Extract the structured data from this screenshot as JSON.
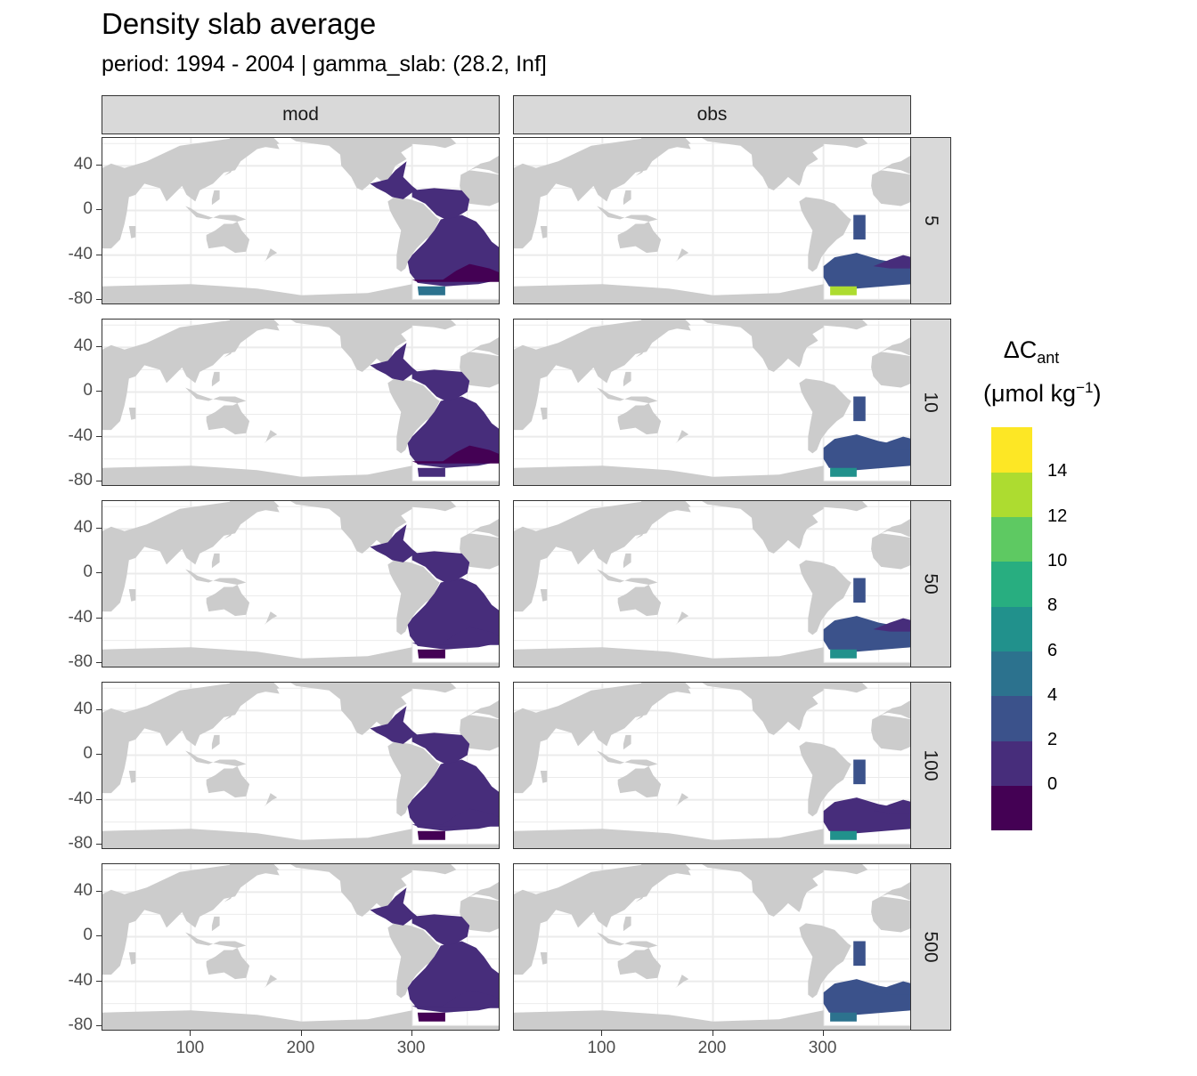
{
  "chart_data": {
    "type": "heatmap",
    "title": "Density slab average",
    "subtitle": "period: 1994 - 2004 | gamma_slab: (28.2, Inf]",
    "facet_columns": [
      "mod",
      "obs"
    ],
    "facet_rows": [
      "5",
      "10",
      "50",
      "100",
      "500"
    ],
    "x_ticks": [
      "100",
      "200",
      "300"
    ],
    "x_tick_values": [
      100,
      200,
      300
    ],
    "y_ticks": [
      "40",
      "0",
      "-40",
      "-80"
    ],
    "y_tick_values": [
      40,
      0,
      -40,
      -80
    ],
    "xlim": [
      20,
      380
    ],
    "ylim": [
      -85,
      65
    ],
    "legend": {
      "title_main": "ΔC",
      "title_sub": "ant",
      "unit_main": "(μmol kg",
      "unit_sup": "−1",
      "unit_close": ")",
      "labels": [
        "14",
        "12",
        "10",
        "8",
        "6",
        "4",
        "2",
        "0"
      ],
      "colors": [
        "#440154",
        "#472d7b",
        "#3b528b",
        "#2c728e",
        "#21918c",
        "#28ae80",
        "#5ec962",
        "#addc30",
        "#fde725"
      ]
    },
    "land_color": "#cccccc",
    "regions_level": {
      "mod": [
        {
          "north": 1,
          "south": 1,
          "atlantic": 1,
          "deep": 0,
          "rim": 3
        },
        {
          "north": 1,
          "south": 1,
          "atlantic": 1,
          "deep": 0,
          "rim": 1
        },
        {
          "north": 1,
          "south": 1,
          "atlantic": 1,
          "deep": 1,
          "rim": 0
        },
        {
          "north": 1,
          "south": 1,
          "atlantic": 1,
          "deep": 1,
          "rim": 0
        },
        {
          "north": 1,
          "south": 1,
          "atlantic": 1,
          "deep": 1,
          "rim": 0
        }
      ],
      "obs": [
        {
          "patch": 2,
          "south": 2,
          "shelf": 7,
          "edge": 1
        },
        {
          "patch": 2,
          "south": 2,
          "shelf": 4,
          "edge": 2
        },
        {
          "patch": 2,
          "south": 2,
          "shelf": 4,
          "edge": 1
        },
        {
          "patch": 2,
          "south": 1,
          "shelf": 4,
          "edge": 1
        },
        {
          "patch": 2,
          "south": 2,
          "shelf": 3,
          "edge": 2
        }
      ]
    }
  }
}
